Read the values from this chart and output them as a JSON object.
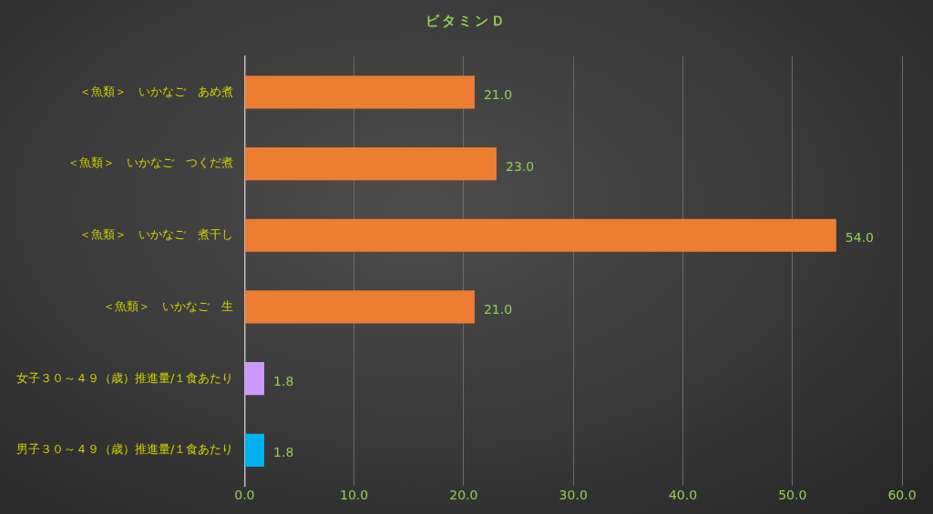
{
  "chart_data": {
    "type": "bar",
    "orientation": "horizontal",
    "title": "ビタミンＤ",
    "categories": [
      "＜魚類＞　いかなご　あめ煮",
      "＜魚類＞　いかなご　つくだ煮",
      "＜魚類＞　いかなご　煮干し",
      "＜魚類＞　いかなご　生",
      "女子３０～４９（歳）推進量/１食あたり",
      "男子３０～４９（歳）推進量/１食あたり"
    ],
    "values": [
      21,
      23,
      54,
      21,
      1.8,
      1.8
    ],
    "colors": [
      "#ed7d31",
      "#ed7d31",
      "#ed7d31",
      "#ed7d31",
      "#cc99ff",
      "#00b0f0"
    ],
    "value_labels": [
      "21.0",
      "23.0",
      "54.0",
      "21.0",
      "1.8",
      "1.8"
    ],
    "xlim": [
      0,
      60
    ],
    "xticks": [
      {
        "value": 0,
        "label": "0.0"
      },
      {
        "value": 10,
        "label": "10.0"
      },
      {
        "value": 20,
        "label": "20.0"
      },
      {
        "value": 30,
        "label": "30.0"
      },
      {
        "value": 40,
        "label": "40.0"
      },
      {
        "value": 50,
        "label": "50.0"
      },
      {
        "value": 60,
        "label": "60.0"
      }
    ],
    "grid": "x",
    "legend": false
  }
}
